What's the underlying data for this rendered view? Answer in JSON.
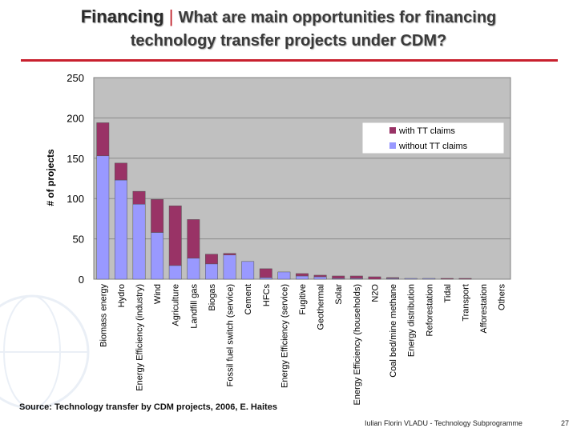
{
  "slide": {
    "title_main": "Financing",
    "title_sep": "|",
    "title_rest": "What are main opportunities for financing",
    "title_line2": "technology transfer projects under CDM?",
    "source": "Source: Technology transfer by CDM projects, 2006, E. Haites",
    "footer": "Iulian Florin VLADU - Technology Subprogramme",
    "page_number": "27"
  },
  "colors": {
    "with_tt": "#993366",
    "without_tt": "#9999ff",
    "plot_bg": "#c0c0c0",
    "title_rule": "#c8202e"
  },
  "chart_data": {
    "type": "bar",
    "stacked": true,
    "title": "",
    "xlabel": "",
    "ylabel": "# of projects",
    "ylim": [
      0,
      250
    ],
    "yticks": [
      0,
      50,
      100,
      150,
      200,
      250
    ],
    "grid": true,
    "legend_position": "top-right",
    "categories": [
      "Biomass energy",
      "Hydro",
      "Energy Efficiency (industry)",
      "Wind",
      "Agriculture",
      "Landfill gas",
      "Biogas",
      "Fossil fuel switch (service)",
      "Cement",
      "HFCs",
      "Energy Efficiency (service)",
      "Fugitive",
      "Geothermal",
      "Solar",
      "Energy Efficiency (households)",
      "N2O",
      "Coal bed/mine methane",
      "Energy distribution",
      "Reforestation",
      "Tidal",
      "Transport",
      "Afforestation",
      "Others"
    ],
    "series": [
      {
        "name": "without TT claims",
        "values": [
          153,
          123,
          93,
          58,
          17,
          26,
          19,
          30,
          22,
          2,
          9,
          4,
          3,
          1,
          1,
          0,
          1,
          1,
          1,
          0,
          0,
          0,
          0
        ]
      },
      {
        "name": "with TT claims",
        "values": [
          41,
          21,
          16,
          41,
          74,
          48,
          12,
          2,
          0,
          11,
          0,
          3,
          2,
          3,
          3,
          3,
          1,
          0,
          0,
          1,
          1,
          0,
          0
        ]
      }
    ]
  }
}
